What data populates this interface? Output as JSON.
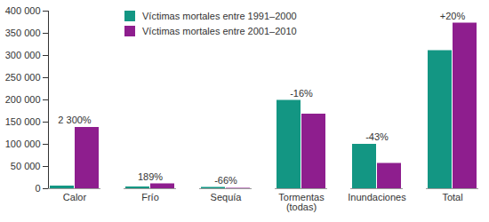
{
  "chart_data": {
    "type": "bar",
    "categories": [
      "Calor",
      "Frío",
      "Sequía",
      "Tormentas (todas)",
      "Inundaciones",
      "Total"
    ],
    "series": [
      {
        "name": "Víctimas mortales entre 1991–2000",
        "color": "#139683",
        "values": [
          6000,
          4000,
          3000,
          199000,
          100000,
          311000
        ]
      },
      {
        "name": "Víctimas mortales entre 2001–2010",
        "color": "#8e1e8e",
        "values": [
          138000,
          11000,
          1000,
          168000,
          57000,
          373000
        ]
      }
    ],
    "annotations": [
      "2 300%",
      "189%",
      "-66%",
      "-16%",
      "-43%",
      "+20%"
    ],
    "ylim": [
      0,
      400000
    ],
    "yticks": [
      0,
      {
        "value": 50000,
        "label": "50 000"
      },
      {
        "value": 100000,
        "label": "100 000"
      },
      {
        "value": 150000,
        "label": "150 000"
      },
      {
        "value": 200000,
        "label": "200 000"
      },
      {
        "value": 250000,
        "label": "250 000"
      },
      {
        "value": 300000,
        "label": "300 000"
      },
      {
        "value": 350000,
        "label": "350 000"
      },
      {
        "value": 400000,
        "label": "400 000"
      }
    ],
    "grid": false,
    "legend": "top-left"
  }
}
